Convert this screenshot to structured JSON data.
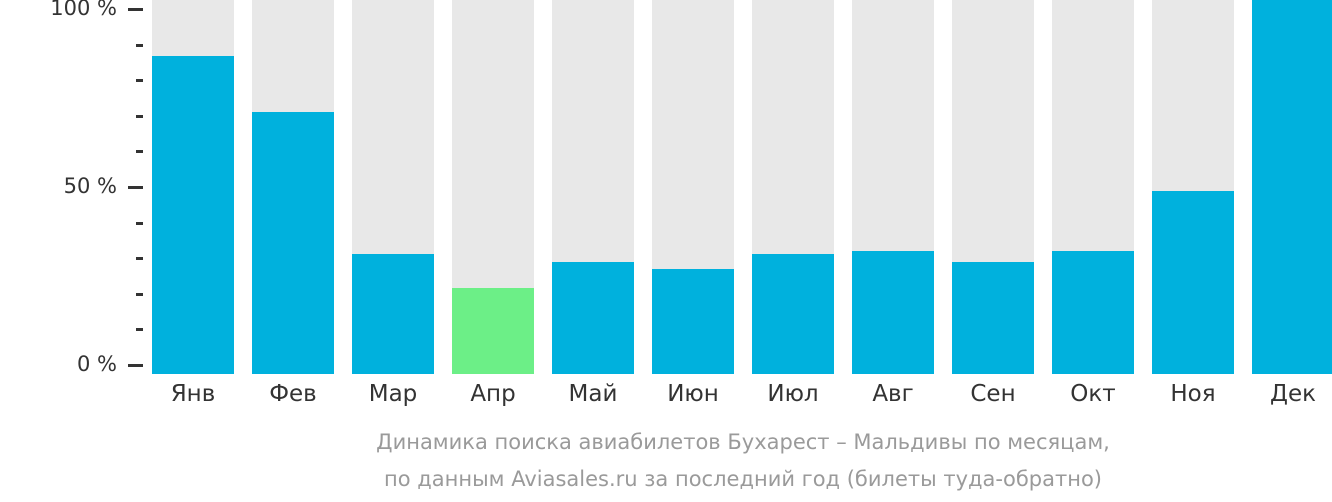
{
  "chart_data": {
    "type": "bar",
    "title": "Динамика поиска авиабилетов Бухарест – Мальдивы по месяцам, по данным Aviasales.ru за последний год (билеты туда-обратно)",
    "xlabel": "",
    "ylabel": "",
    "categories": [
      "Янв",
      "Фев",
      "Мар",
      "Апр",
      "Май",
      "Июн",
      "Июл",
      "Авг",
      "Сен",
      "Окт",
      "Ноя",
      "Дек"
    ],
    "values": [
      85,
      70,
      32,
      23,
      30,
      28,
      32,
      33,
      30,
      33,
      49,
      100
    ],
    "highlight_index": 3,
    "ylim": [
      0,
      100
    ],
    "yticks": [
      "0 %",
      "50 %",
      "100 %"
    ],
    "colors": {
      "bar": "#00b1dd",
      "highlight": "#6cef87",
      "background_bar": "#e8e8e8"
    },
    "grid": false,
    "legend": null
  },
  "caption": {
    "line1": "Динамика поиска авиабилетов Бухарест – Мальдивы по месяцам,",
    "line2": "по данным Aviasales.ru за последний год (билеты туда-обратно)"
  }
}
